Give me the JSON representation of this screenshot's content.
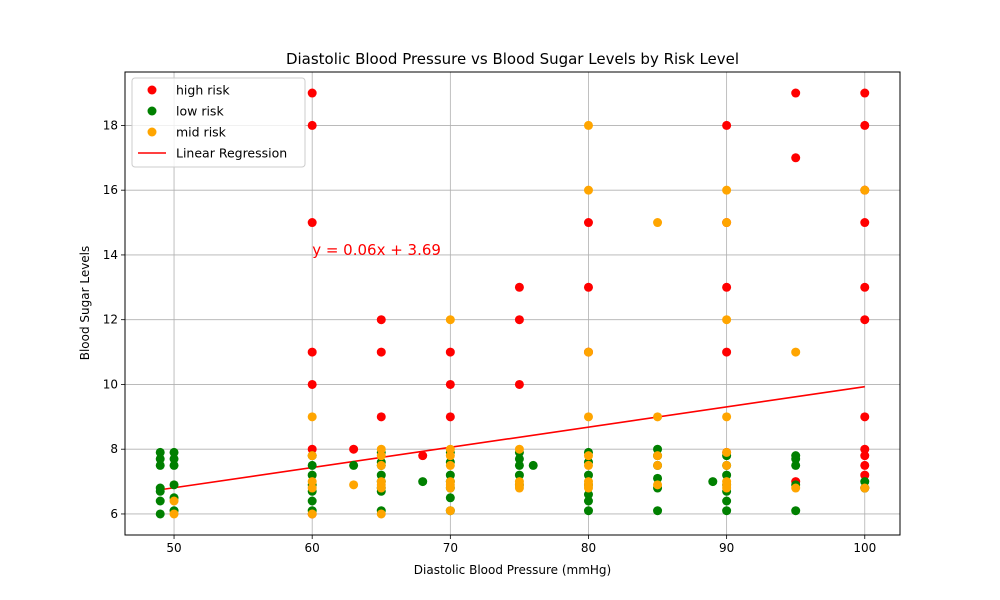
{
  "chart_data": {
    "type": "scatter",
    "title": "Diastolic Blood Pressure vs Blood Sugar Levels by Risk Level",
    "xlabel": "Diastolic Blood Pressure (mmHg)",
    "ylabel": "Blood Sugar Levels",
    "xlim": [
      46.45,
      102.55
    ],
    "ylim": [
      5.35,
      19.65
    ],
    "xticks": [
      50,
      60,
      70,
      80,
      90,
      100
    ],
    "yticks": [
      6,
      8,
      10,
      12,
      14,
      16,
      18
    ],
    "grid": true,
    "legend_position": "top-left",
    "series": [
      {
        "name": "high risk",
        "color": "#ff0000",
        "points": [
          [
            60,
            19
          ],
          [
            60,
            18
          ],
          [
            60,
            15
          ],
          [
            60,
            11
          ],
          [
            60,
            10
          ],
          [
            60,
            8
          ],
          [
            60,
            6
          ],
          [
            63,
            8
          ],
          [
            65,
            12
          ],
          [
            65,
            11
          ],
          [
            65,
            9
          ],
          [
            68,
            7.8
          ],
          [
            70,
            11
          ],
          [
            70,
            10
          ],
          [
            70,
            9
          ],
          [
            75,
            13
          ],
          [
            75,
            12
          ],
          [
            75,
            10
          ],
          [
            80,
            15
          ],
          [
            80,
            13
          ],
          [
            80,
            11
          ],
          [
            90,
            18
          ],
          [
            90,
            15
          ],
          [
            90,
            13
          ],
          [
            90,
            11
          ],
          [
            90,
            7.9
          ],
          [
            95,
            19
          ],
          [
            95,
            17
          ],
          [
            95,
            7
          ],
          [
            100,
            19
          ],
          [
            100,
            18
          ],
          [
            100,
            16
          ],
          [
            100,
            15
          ],
          [
            100,
            13
          ],
          [
            100,
            12
          ],
          [
            100,
            9
          ],
          [
            100,
            8
          ],
          [
            100,
            7.8
          ],
          [
            100,
            7.5
          ],
          [
            100,
            7.2
          ],
          [
            100,
            6.8
          ]
        ]
      },
      {
        "name": "low risk",
        "color": "#008000",
        "points": [
          [
            49,
            7.9
          ],
          [
            49,
            7.7
          ],
          [
            49,
            7.5
          ],
          [
            49,
            6.8
          ],
          [
            49,
            6.7
          ],
          [
            49,
            6.4
          ],
          [
            49,
            6
          ],
          [
            50,
            7.9
          ],
          [
            50,
            7.7
          ],
          [
            50,
            7.5
          ],
          [
            50,
            6.9
          ],
          [
            50,
            6.5
          ],
          [
            50,
            6.1
          ],
          [
            60,
            7.8
          ],
          [
            60,
            7.5
          ],
          [
            60,
            7.2
          ],
          [
            60,
            6.9
          ],
          [
            60,
            6.7
          ],
          [
            60,
            6.4
          ],
          [
            60,
            6.1
          ],
          [
            63,
            7.5
          ],
          [
            65,
            7.9
          ],
          [
            65,
            7.6
          ],
          [
            65,
            7.5
          ],
          [
            65,
            7.2
          ],
          [
            65,
            7
          ],
          [
            65,
            6.8
          ],
          [
            65,
            6.7
          ],
          [
            65,
            6.1
          ],
          [
            68,
            7
          ],
          [
            70,
            7.9
          ],
          [
            70,
            7.6
          ],
          [
            70,
            7.2
          ],
          [
            70,
            7
          ],
          [
            70,
            6.8
          ],
          [
            70,
            6.5
          ],
          [
            70,
            6.1
          ],
          [
            75,
            7.9
          ],
          [
            75,
            7.7
          ],
          [
            75,
            7.5
          ],
          [
            75,
            7.2
          ],
          [
            75,
            6.9
          ],
          [
            76,
            7.5
          ],
          [
            80,
            7.9
          ],
          [
            80,
            7.6
          ],
          [
            80,
            7.2
          ],
          [
            80,
            6.9
          ],
          [
            80,
            6.6
          ],
          [
            80,
            6.4
          ],
          [
            80,
            6.1
          ],
          [
            85,
            8
          ],
          [
            85,
            7.8
          ],
          [
            85,
            7.5
          ],
          [
            85,
            7.1
          ],
          [
            85,
            6.8
          ],
          [
            85,
            6.1
          ],
          [
            89,
            7
          ],
          [
            90,
            7.8
          ],
          [
            90,
            7.5
          ],
          [
            90,
            7.2
          ],
          [
            90,
            6.9
          ],
          [
            90,
            6.7
          ],
          [
            90,
            6.4
          ],
          [
            90,
            6.1
          ],
          [
            95,
            7.8
          ],
          [
            95,
            7.7
          ],
          [
            95,
            7.5
          ],
          [
            95,
            6.9
          ],
          [
            95,
            6.1
          ],
          [
            100,
            7
          ],
          [
            100,
            6.8
          ]
        ]
      },
      {
        "name": "mid risk",
        "color": "#ffa500",
        "points": [
          [
            50,
            6.4
          ],
          [
            50,
            6
          ],
          [
            60,
            9
          ],
          [
            60,
            7.8
          ],
          [
            60,
            7
          ],
          [
            60,
            6.8
          ],
          [
            60,
            6
          ],
          [
            63,
            6.9
          ],
          [
            65,
            8
          ],
          [
            65,
            7.8
          ],
          [
            65,
            7.5
          ],
          [
            65,
            7
          ],
          [
            65,
            6.9
          ],
          [
            65,
            6.8
          ],
          [
            65,
            6
          ],
          [
            70,
            12
          ],
          [
            70,
            8
          ],
          [
            70,
            7.8
          ],
          [
            70,
            7.5
          ],
          [
            70,
            7
          ],
          [
            70,
            6.9
          ],
          [
            70,
            6.8
          ],
          [
            70,
            6.1
          ],
          [
            75,
            8
          ],
          [
            75,
            7
          ],
          [
            75,
            6.9
          ],
          [
            75,
            6.8
          ],
          [
            80,
            18
          ],
          [
            80,
            16
          ],
          [
            80,
            11
          ],
          [
            80,
            9
          ],
          [
            80,
            7.8
          ],
          [
            80,
            7.5
          ],
          [
            80,
            7
          ],
          [
            80,
            6.9
          ],
          [
            80,
            6.8
          ],
          [
            85,
            15
          ],
          [
            85,
            9
          ],
          [
            85,
            7.8
          ],
          [
            85,
            7.5
          ],
          [
            85,
            6.9
          ],
          [
            90,
            16
          ],
          [
            90,
            15
          ],
          [
            90,
            12
          ],
          [
            90,
            9
          ],
          [
            90,
            7.9
          ],
          [
            90,
            7.5
          ],
          [
            90,
            7
          ],
          [
            90,
            6.9
          ],
          [
            90,
            6.8
          ],
          [
            95,
            11
          ],
          [
            95,
            6.8
          ],
          [
            100,
            16
          ],
          [
            100,
            6.8
          ]
        ]
      }
    ],
    "regression": {
      "name": "Linear Regression",
      "color": "#ff0000",
      "slope": 0.0624,
      "intercept": 3.69,
      "x_range": [
        49,
        100
      ],
      "equation_label": "y = 0.06x + 3.69",
      "equation_label_pos": [
        60,
        14
      ]
    }
  }
}
